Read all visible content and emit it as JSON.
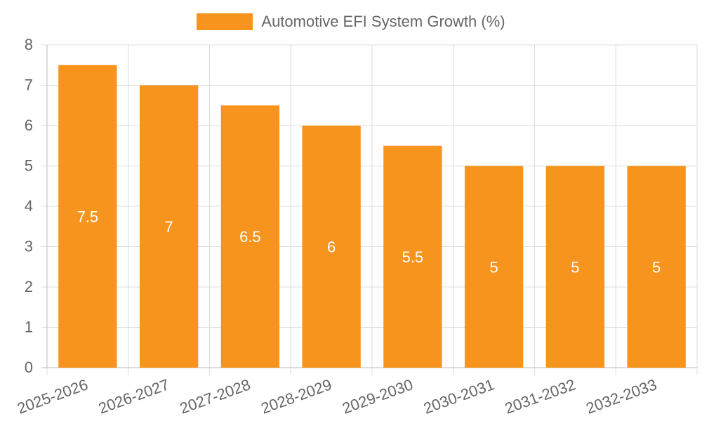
{
  "chart_data": {
    "type": "bar",
    "categories": [
      "2025-2026",
      "2026-2027",
      "2027-2028",
      "2028-2029",
      "2029-2030",
      "2030-2031",
      "2031-2032",
      "2032-2033"
    ],
    "series": [
      {
        "name": "Automotive EFI System Growth (%)",
        "values": [
          7.5,
          7,
          6.5,
          6,
          5.5,
          5,
          5,
          5
        ]
      }
    ],
    "data_labels": [
      "7.5",
      "7",
      "6.5",
      "6",
      "5.5",
      "5",
      "5",
      "5"
    ],
    "y_ticks": [
      "0",
      "1",
      "2",
      "3",
      "4",
      "5",
      "6",
      "7",
      "8"
    ],
    "ylim": [
      0,
      8
    ],
    "grid": true,
    "legend_position": "top",
    "colors": {
      "bar": "#f7941d",
      "grid": "#dcdcdc",
      "axis": "#bbbbbb",
      "text": "#666666",
      "data_label": "#ffffff"
    }
  }
}
